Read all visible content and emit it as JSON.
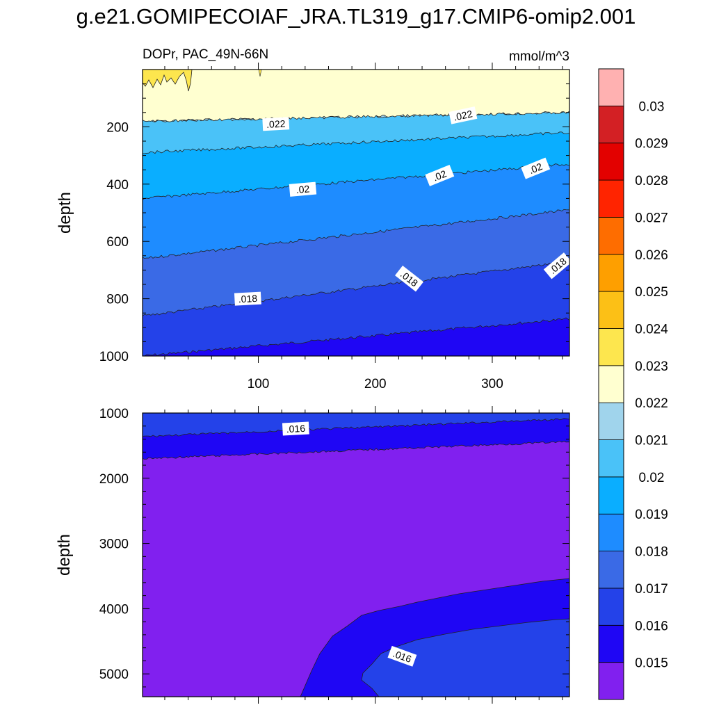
{
  "title": "g.e21.GOMIPECOIAF_JRA.TL319_g17.CMIP6-omip2.001",
  "chart_data": {
    "type": "contour",
    "variable_label": "DOPr, PAC_49N-66N",
    "units": "mmol/m^3",
    "x_ticks": [
      100,
      200,
      300
    ],
    "x_range": [
      1,
      366
    ],
    "colorbar": {
      "colors": [
        "#8120EF",
        "#1F06F4",
        "#2442E9",
        "#3A6AE6",
        "#1E8CFF",
        "#0AAEFF",
        "#4AC2F8",
        "#A0D4EC",
        "#FFFFD0",
        "#FDE64E",
        "#FCC016",
        "#FE9F00",
        "#FE6D00",
        "#FF2400",
        "#E30100",
        "#D32024",
        "#FFB1B1"
      ],
      "labels": [
        "0.015",
        "0.016",
        "0.017",
        "0.018",
        "0.019",
        "0.02",
        "0.021",
        "0.022",
        "0.023",
        "0.024",
        "0.025",
        "0.026",
        "0.027",
        "0.028",
        "0.029",
        "0.03"
      ]
    },
    "panels": [
      {
        "name": "upper",
        "ylabel": "depth",
        "y_range": [
          0,
          1000
        ],
        "y_ticks": [
          200,
          400,
          600,
          800,
          1000
        ],
        "x_ticklabels": [
          "100",
          "200",
          "300"
        ],
        "bands": [
          {
            "bottom_start": 1000,
            "bottom_end": 1000,
            "color_index": 1
          },
          {
            "bottom_start": 1000,
            "bottom_end": 870,
            "color_index": 2
          },
          {
            "bottom_start": 860,
            "bottom_end": 670,
            "color_index": 3
          },
          {
            "bottom_start": 660,
            "bottom_end": 490,
            "color_index": 4
          },
          {
            "bottom_start": 450,
            "bottom_end": 330,
            "color_index": 5
          },
          {
            "bottom_start": 290,
            "bottom_end": 220,
            "color_index": 6
          },
          {
            "bottom_start": 180,
            "bottom_end": 150,
            "color_index": 7
          },
          {
            "bottom_start": 0,
            "bottom_end": 0,
            "color_index": 8
          }
        ],
        "contour_labels": [
          {
            "text": ".022",
            "x": 115,
            "y": 190,
            "angle": -3
          },
          {
            "text": ".022",
            "x": 275,
            "y": 160,
            "angle": -12
          },
          {
            "text": ".02",
            "x": 138,
            "y": 418,
            "angle": -5
          },
          {
            "text": ".02",
            "x": 255,
            "y": 370,
            "angle": -22
          },
          {
            "text": ".02",
            "x": 337,
            "y": 345,
            "angle": -22
          },
          {
            "text": ".018",
            "x": 91,
            "y": 800,
            "angle": -3
          },
          {
            "text": ".018",
            "x": 229,
            "y": 730,
            "angle": 38
          },
          {
            "text": ".018",
            "x": 356,
            "y": 685,
            "angle": -40
          }
        ]
      },
      {
        "name": "lower",
        "ylabel": "depth",
        "y_range": [
          1000,
          5350
        ],
        "y_ticks": [
          1000,
          2000,
          3000,
          4000,
          5000
        ],
        "contour_labels": [
          {
            "text": ".016",
            "x": 132,
            "y": 1240,
            "angle": -3
          },
          {
            "text": ".016",
            "x": 223,
            "y": 4730,
            "angle": 20
          }
        ]
      }
    ]
  }
}
